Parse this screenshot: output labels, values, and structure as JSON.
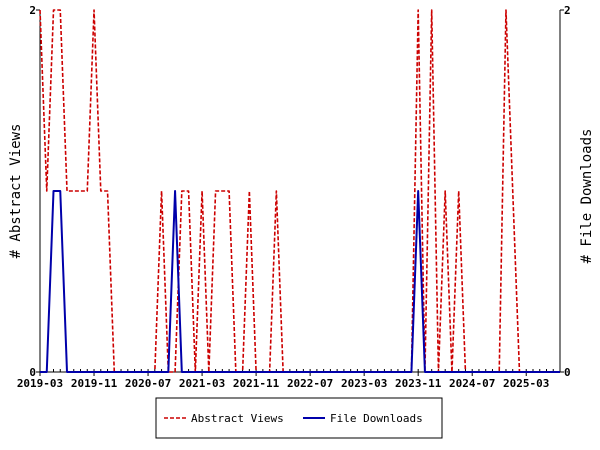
{
  "chart_data": {
    "type": "line",
    "y_left_label": "# Abstract Views",
    "y_right_label": "# File Downloads",
    "y_left_ticks": [
      "0",
      "2"
    ],
    "y_right_ticks": [
      "0",
      "2"
    ],
    "ylim_left": [
      0,
      2
    ],
    "ylim_right": [
      0,
      2
    ],
    "x_tick_labels": [
      "2019-03",
      "2019-11",
      "2020-07",
      "2021-03",
      "2021-11",
      "2022-07",
      "2023-03",
      "2023-11",
      "2024-07",
      "2025-03"
    ],
    "x_start": "2019-03",
    "x_end": "2025-08",
    "legend_position": "bottom",
    "grid": false,
    "series": [
      {
        "name": "Abstract Views",
        "axis": "left",
        "color": "#cc0000",
        "style": "dashed",
        "points": [
          [
            "2019-03",
            2
          ],
          [
            "2019-04",
            1
          ],
          [
            "2019-05",
            2
          ],
          [
            "2019-06",
            2
          ],
          [
            "2019-07",
            1
          ],
          [
            "2019-08",
            1
          ],
          [
            "2019-09",
            1
          ],
          [
            "2019-10",
            1
          ],
          [
            "2019-11",
            2
          ],
          [
            "2019-12",
            1
          ],
          [
            "2020-01",
            1
          ],
          [
            "2020-02",
            0
          ],
          [
            "2020-03",
            0
          ],
          [
            "2020-04",
            0
          ],
          [
            "2020-05",
            0
          ],
          [
            "2020-06",
            0
          ],
          [
            "2020-07",
            0
          ],
          [
            "2020-08",
            0
          ],
          [
            "2020-09",
            1
          ],
          [
            "2020-10",
            0
          ],
          [
            "2020-11",
            0
          ],
          [
            "2020-12",
            1
          ],
          [
            "2021-01",
            1
          ],
          [
            "2021-02",
            0
          ],
          [
            "2021-03",
            1
          ],
          [
            "2021-04",
            0
          ],
          [
            "2021-05",
            1
          ],
          [
            "2021-06",
            1
          ],
          [
            "2021-07",
            1
          ],
          [
            "2021-08",
            0
          ],
          [
            "2021-09",
            0
          ],
          [
            "2021-10",
            1
          ],
          [
            "2021-11",
            0
          ],
          [
            "2021-12",
            0
          ],
          [
            "2022-01",
            0
          ],
          [
            "2022-02",
            1
          ],
          [
            "2022-03",
            0
          ],
          [
            "2022-04",
            0
          ],
          [
            "2022-05",
            0
          ],
          [
            "2022-06",
            0
          ],
          [
            "2022-07",
            0
          ],
          [
            "2022-08",
            0
          ],
          [
            "2022-09",
            0
          ],
          [
            "2022-10",
            0
          ],
          [
            "2022-11",
            0
          ],
          [
            "2022-12",
            0
          ],
          [
            "2023-01",
            0
          ],
          [
            "2023-02",
            0
          ],
          [
            "2023-03",
            0
          ],
          [
            "2023-04",
            0
          ],
          [
            "2023-05",
            0
          ],
          [
            "2023-06",
            0
          ],
          [
            "2023-07",
            0
          ],
          [
            "2023-08",
            0
          ],
          [
            "2023-09",
            0
          ],
          [
            "2023-10",
            0
          ],
          [
            "2023-11",
            2
          ],
          [
            "2023-12",
            0
          ],
          [
            "2024-01",
            2
          ],
          [
            "2024-02",
            0
          ],
          [
            "2024-03",
            1
          ],
          [
            "2024-04",
            0
          ],
          [
            "2024-05",
            1
          ],
          [
            "2024-06",
            0
          ],
          [
            "2024-07",
            0
          ],
          [
            "2024-08",
            0
          ],
          [
            "2024-09",
            0
          ],
          [
            "2024-10",
            0
          ],
          [
            "2024-11",
            0
          ],
          [
            "2024-12",
            2
          ],
          [
            "2025-01",
            1
          ],
          [
            "2025-02",
            0
          ],
          [
            "2025-03",
            0
          ],
          [
            "2025-04",
            0
          ],
          [
            "2025-05",
            0
          ],
          [
            "2025-06",
            0
          ],
          [
            "2025-07",
            0
          ],
          [
            "2025-08",
            0
          ]
        ]
      },
      {
        "name": "File Downloads",
        "axis": "right",
        "color": "#0000aa",
        "style": "solid",
        "points": [
          [
            "2019-03",
            0
          ],
          [
            "2019-04",
            0
          ],
          [
            "2019-05",
            1
          ],
          [
            "2019-06",
            1
          ],
          [
            "2019-07",
            0
          ],
          [
            "2019-08",
            0
          ],
          [
            "2020-09",
            0
          ],
          [
            "2020-10",
            0
          ],
          [
            "2020-11",
            1
          ],
          [
            "2020-12",
            0
          ],
          [
            "2021-01",
            0
          ],
          [
            "2023-10",
            0
          ],
          [
            "2023-11",
            1
          ],
          [
            "2023-12",
            0
          ],
          [
            "2024-01",
            0
          ],
          [
            "2025-08",
            0
          ]
        ]
      }
    ]
  }
}
